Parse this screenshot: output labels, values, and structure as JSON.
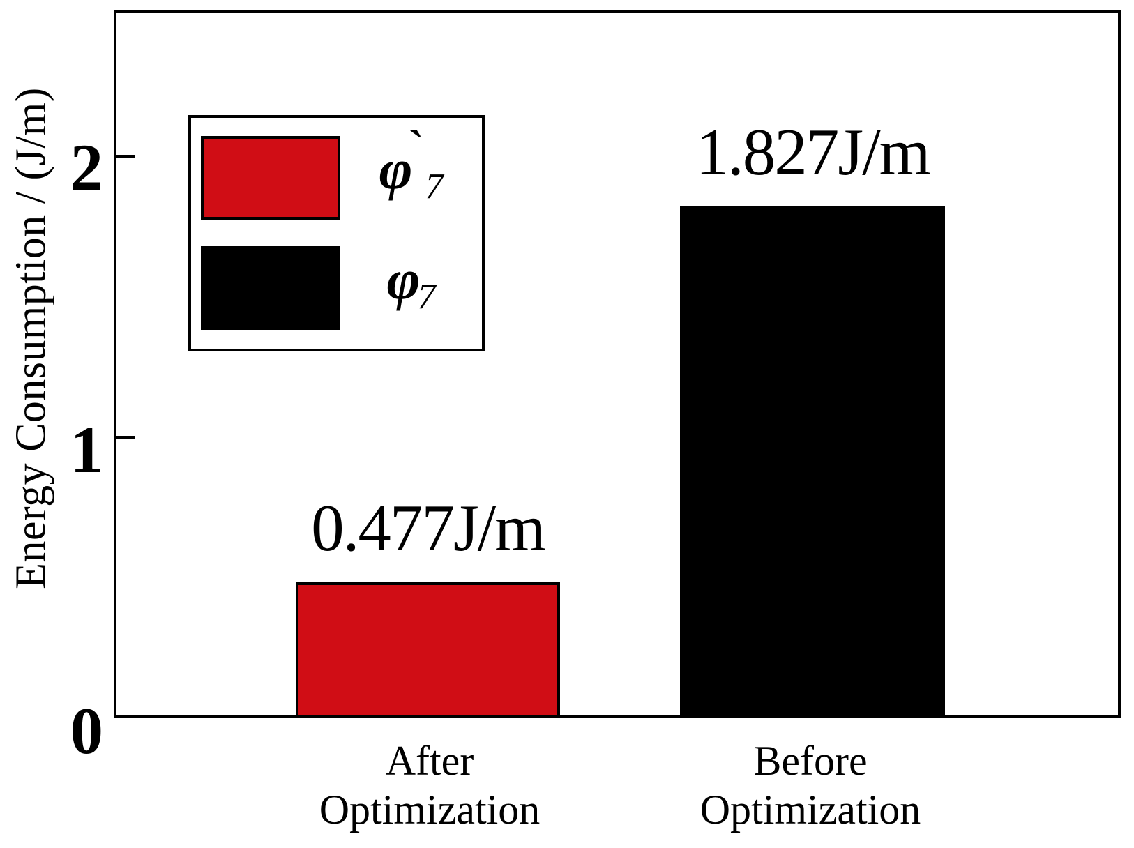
{
  "chart_data": {
    "type": "bar",
    "title": "",
    "xlabel": "",
    "ylabel": "Energy Consumption / (J/m)",
    "ylim": [
      0,
      2.52
    ],
    "ytick_labels": [
      "0",
      "1",
      "2"
    ],
    "grid": false,
    "legend_position": "upper-left",
    "categories": [
      "After Optimization",
      "Before Optimization"
    ],
    "category_lines": [
      {
        "line1": "After",
        "line2": "Optimization"
      },
      {
        "line1": "Before",
        "line2": "Optimization"
      }
    ],
    "series": [
      {
        "name": "phi-prime-7",
        "legend_symbol": "φ",
        "legend_accent": "`",
        "legend_subscript": "7",
        "category": "After Optimization",
        "value": 0.477,
        "bar_label": "0.477J/m",
        "color": "#d00d15"
      },
      {
        "name": "phi-7",
        "legend_symbol": "φ",
        "legend_accent": "",
        "legend_subscript": "7",
        "category": "Before Optimization",
        "value": 1.827,
        "bar_label": "1.827J/m",
        "color": "#000000"
      }
    ]
  },
  "colors": {
    "axis": "#000000",
    "background": "#ffffff"
  }
}
